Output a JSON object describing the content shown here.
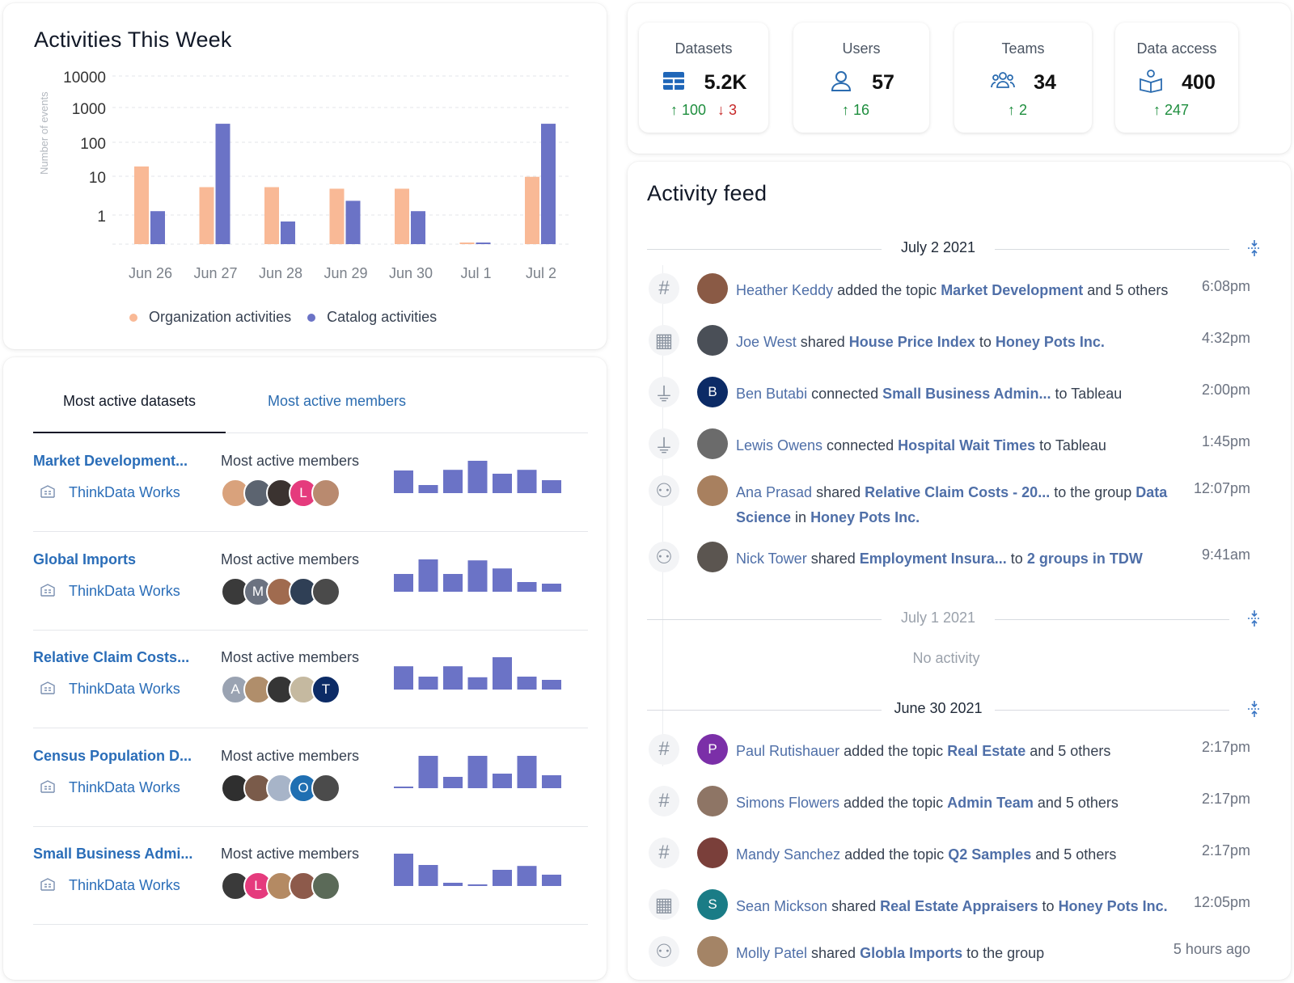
{
  "activities": {
    "title": "Activities This Week",
    "legend": {
      "org": "Organization activities",
      "catalog": "Catalog activities"
    },
    "colors": {
      "org": "#f9b996",
      "catalog": "#6b73c6"
    }
  },
  "chart_data": {
    "type": "bar",
    "title": "Activities This Week",
    "ylabel": "Number of events",
    "yscale": "log",
    "yticks": [
      "10000",
      "1000",
      "100",
      "10",
      "1"
    ],
    "categories": [
      "Jun 26",
      "Jun 27",
      "Jun 28",
      "Jun 29",
      "Jun 30",
      "Jul 1",
      "Jul 2"
    ],
    "series": [
      {
        "name": "Organization activities",
        "values": [
          40,
          10,
          10,
          9,
          9,
          0.1,
          20
        ]
      },
      {
        "name": "Catalog activities",
        "values": [
          2,
          700,
          1,
          4,
          2,
          0.1,
          700
        ]
      }
    ],
    "legend": "bottom"
  },
  "tabs": {
    "active": "Most active datasets",
    "other": "Most active members"
  },
  "datasets": [
    {
      "name": "Market Development...",
      "org": "ThinkData Works",
      "members_label": "Most active members",
      "avatars": [
        {
          "t": "",
          "c": "#d9a27c"
        },
        {
          "t": "",
          "c": "#5c6470"
        },
        {
          "t": "",
          "c": "#3b3330"
        },
        {
          "t": "L",
          "c": "#e53b7d"
        },
        {
          "t": "",
          "c": "#b98a6f"
        }
      ],
      "activity": [
        0.7,
        0.25,
        0.72,
        1.0,
        0.6,
        0.72,
        0.4
      ]
    },
    {
      "name": "Global Imports",
      "org": "ThinkData Works",
      "members_label": "Most active members",
      "avatars": [
        {
          "t": "",
          "c": "#3a3a3a"
        },
        {
          "t": "M",
          "c": "#6b7280"
        },
        {
          "t": "",
          "c": "#a06b4f"
        },
        {
          "t": "",
          "c": "#2f3f55"
        },
        {
          "t": "",
          "c": "#4a4a4a"
        }
      ],
      "activity": [
        0.55,
        1.0,
        0.55,
        0.97,
        0.72,
        0.3,
        0.25
      ]
    },
    {
      "name": "Relative Claim Costs...",
      "org": "ThinkData Works",
      "members_label": "Most active members",
      "avatars": [
        {
          "t": "A",
          "c": "#9aa3b2"
        },
        {
          "t": "",
          "c": "#b08e6b"
        },
        {
          "t": "",
          "c": "#353535"
        },
        {
          "t": "",
          "c": "#c5b9a0"
        },
        {
          "t": "T",
          "c": "#0c2b66"
        }
      ],
      "activity": [
        0.72,
        0.4,
        0.72,
        0.38,
        1.0,
        0.4,
        0.3
      ]
    },
    {
      "name": "Census Population D...",
      "org": "ThinkData Works",
      "members_label": "Most active members",
      "avatars": [
        {
          "t": "",
          "c": "#2f2f2f"
        },
        {
          "t": "",
          "c": "#7a5b4a"
        },
        {
          "t": "",
          "c": "#a7b4c8"
        },
        {
          "t": "O",
          "c": "#1f6fb2"
        },
        {
          "t": "",
          "c": "#4b4b4b"
        }
      ],
      "activity": [
        0.04,
        1.0,
        0.35,
        1.0,
        0.45,
        1.0,
        0.4
      ]
    },
    {
      "name": "Small Business Admi...",
      "org": "ThinkData Works",
      "members_label": "Most active members",
      "avatars": [
        {
          "t": "",
          "c": "#3a3a3a"
        },
        {
          "t": "L",
          "c": "#e53b7d"
        },
        {
          "t": "",
          "c": "#b48a63"
        },
        {
          "t": "",
          "c": "#8d5a4b"
        },
        {
          "t": "",
          "c": "#5b6a58"
        }
      ],
      "activity": [
        1.0,
        0.65,
        0.1,
        0.04,
        0.5,
        0.62,
        0.35
      ]
    }
  ],
  "stats": [
    {
      "label": "Datasets",
      "value": "5.2K",
      "up": "100",
      "down": "3",
      "icon": "table-icon"
    },
    {
      "label": "Users",
      "value": "57",
      "up": "16",
      "down": "",
      "icon": "user-icon"
    },
    {
      "label": "Teams",
      "value": "34",
      "up": "2",
      "down": "",
      "icon": "team-icon"
    },
    {
      "label": "Data access",
      "value": "400",
      "up": "247",
      "down": "",
      "icon": "open-book-icon"
    }
  ],
  "feed": {
    "title": "Activity feed",
    "no_activity": "No activity",
    "days": [
      {
        "date": "July 2 2021",
        "muted": false
      },
      {
        "date": "July 1 2021",
        "muted": true
      },
      {
        "date": "June 30 2021",
        "muted": false
      }
    ],
    "items": [
      {
        "type": "hash",
        "avatar": {
          "t": "",
          "c": "#8a5a45"
        },
        "time": "6:08pm",
        "parts": [
          {
            "k": "u",
            "t": "Heather Keddy"
          },
          {
            "k": "n",
            "t": " added the topic "
          },
          {
            "k": "b",
            "t": "Market Development"
          },
          {
            "k": "n",
            "t": " and 5 others"
          }
        ]
      },
      {
        "type": "building",
        "avatar": {
          "t": "",
          "c": "#4a4f57"
        },
        "time": "4:32pm",
        "parts": [
          {
            "k": "u",
            "t": "Joe West"
          },
          {
            "k": "n",
            "t": " shared  "
          },
          {
            "k": "b",
            "t": "House Price Index"
          },
          {
            "k": "n",
            "t": "  to "
          },
          {
            "k": "b",
            "t": "Honey Pots Inc."
          }
        ]
      },
      {
        "type": "plug",
        "avatar": {
          "t": "B",
          "c": "#0c2b66"
        },
        "time": "2:00pm",
        "parts": [
          {
            "k": "u",
            "t": "Ben Butabi"
          },
          {
            "k": "n",
            "t": " connected  "
          },
          {
            "k": "b",
            "t": "Small Business Admin..."
          },
          {
            "k": "n",
            "t": "  to Tableau"
          }
        ]
      },
      {
        "type": "plug",
        "avatar": {
          "t": "",
          "c": "#6b6b6b"
        },
        "time": "1:45pm",
        "parts": [
          {
            "k": "u",
            "t": "Lewis Owens"
          },
          {
            "k": "n",
            "t": " connected  "
          },
          {
            "k": "b",
            "t": "Hospital Wait Times"
          },
          {
            "k": "n",
            "t": "  to Tableau"
          }
        ]
      },
      {
        "type": "group",
        "avatar": {
          "t": "",
          "c": "#a8805f"
        },
        "time": "12:07pm",
        "parts": [
          {
            "k": "u",
            "t": "Ana Prasad"
          },
          {
            "k": "n",
            "t": " shared  "
          },
          {
            "k": "b",
            "t": "Relative Claim Costs - 20..."
          },
          {
            "k": "n",
            "t": "  to the group "
          },
          {
            "k": "b",
            "t": "Data Science"
          },
          {
            "k": "n",
            "t": " in "
          },
          {
            "k": "b",
            "t": "Honey Pots Inc."
          }
        ]
      },
      {
        "type": "group",
        "avatar": {
          "t": "",
          "c": "#5b5550"
        },
        "time": "9:41am",
        "parts": [
          {
            "k": "u",
            "t": "Nick Tower"
          },
          {
            "k": "n",
            "t": " shared "
          },
          {
            "k": "b",
            "t": "Employment Insura..."
          },
          {
            "k": "n",
            "t": " to "
          },
          {
            "k": "b",
            "t": "2 groups in TDW"
          }
        ]
      },
      {
        "type": "hash",
        "avatar": {
          "t": "P",
          "c": "#7b2fa8"
        },
        "time": "2:17pm",
        "parts": [
          {
            "k": "u",
            "t": "Paul Rutishauer"
          },
          {
            "k": "n",
            "t": " added the topic "
          },
          {
            "k": "b",
            "t": "Real Estate"
          },
          {
            "k": "n",
            "t": " and 5 others"
          }
        ]
      },
      {
        "type": "hash",
        "avatar": {
          "t": "",
          "c": "#8e7565"
        },
        "time": "2:17pm",
        "parts": [
          {
            "k": "u",
            "t": "Simons Flowers"
          },
          {
            "k": "n",
            "t": " added the topic "
          },
          {
            "k": "b",
            "t": "Admin Team"
          },
          {
            "k": "n",
            "t": " and 5 others"
          }
        ]
      },
      {
        "type": "hash",
        "avatar": {
          "t": "",
          "c": "#7a3f3a"
        },
        "time": "2:17pm",
        "parts": [
          {
            "k": "u",
            "t": "Mandy Sanchez"
          },
          {
            "k": "n",
            "t": " added the topic "
          },
          {
            "k": "b",
            "t": "Q2 Samples"
          },
          {
            "k": "n",
            "t": " and 5 others"
          }
        ]
      },
      {
        "type": "building",
        "avatar": {
          "t": "S",
          "c": "#1a7c86"
        },
        "time": "12:05pm",
        "parts": [
          {
            "k": "u",
            "t": "Sean Mickson"
          },
          {
            "k": "n",
            "t": " shared  "
          },
          {
            "k": "b",
            "t": "Real Estate Appraisers"
          },
          {
            "k": "n",
            "t": "  to "
          },
          {
            "k": "b",
            "t": "Honey Pots Inc."
          }
        ]
      },
      {
        "type": "group",
        "avatar": {
          "t": "",
          "c": "#a48466"
        },
        "time": "5 hours ago",
        "parts": [
          {
            "k": "u",
            "t": "Molly Patel"
          },
          {
            "k": "n",
            "t": " shared  "
          },
          {
            "k": "b",
            "t": "Globla Imports"
          },
          {
            "k": "n",
            "t": "  to the group"
          }
        ]
      }
    ]
  }
}
